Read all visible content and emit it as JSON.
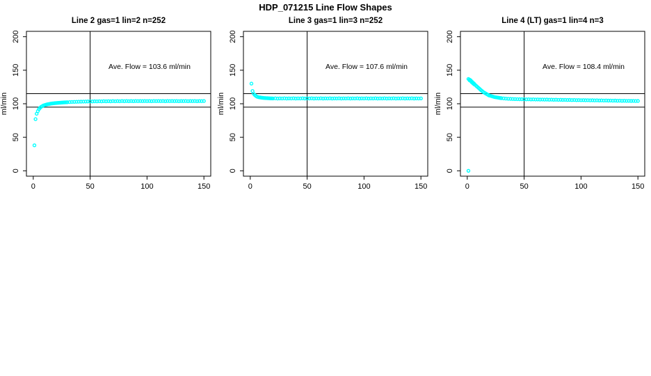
{
  "page": {
    "main_title": "HDP_071215  Line Flow Shapes"
  },
  "colors": {
    "points": "#00ffff",
    "axis": "#000000",
    "text": "#000000",
    "background": "#ffffff"
  },
  "chart_data": [
    {
      "type": "scatter",
      "title": "Line 2 gas=1 lin=2 n=252",
      "annotation": "Ave. Flow =  103.6  ml/min",
      "ave_flow": 103.6,
      "n": 252,
      "xlabel": "",
      "ylabel": "ml/min",
      "xticks": [
        0,
        50,
        100,
        150
      ],
      "yticks": [
        0,
        50,
        100,
        150,
        200
      ],
      "xlim": [
        -6,
        156
      ],
      "ylim": [
        -8,
        208
      ],
      "hlines": [
        95,
        115
      ],
      "vlines": [
        50
      ],
      "points": [
        [
          1,
          38
        ],
        [
          2,
          77
        ],
        [
          3,
          85
        ],
        [
          4,
          89
        ],
        [
          5,
          92
        ],
        [
          6,
          94
        ],
        [
          7,
          95.5
        ],
        [
          8,
          96.5
        ],
        [
          9,
          97.5
        ],
        [
          10,
          98
        ],
        [
          11,
          98.5
        ],
        [
          12,
          99
        ],
        [
          13,
          99.4
        ],
        [
          14,
          99.7
        ],
        [
          15,
          100
        ],
        [
          16,
          100.3
        ],
        [
          17,
          100.5
        ],
        [
          18,
          100.7
        ],
        [
          19,
          100.9
        ],
        [
          20,
          101
        ],
        [
          21,
          101.2
        ],
        [
          22,
          101.3
        ],
        [
          23,
          101.5
        ],
        [
          24,
          101.6
        ],
        [
          25,
          101.8
        ],
        [
          26,
          101.9
        ],
        [
          27,
          102
        ],
        [
          28,
          102.1
        ],
        [
          29,
          102.2
        ],
        [
          30,
          102.3
        ],
        [
          32,
          102.5
        ],
        [
          34,
          102.7
        ],
        [
          36,
          102.8
        ],
        [
          38,
          102.9
        ],
        [
          40,
          103
        ],
        [
          42,
          103.1
        ],
        [
          44,
          103.2
        ],
        [
          46,
          103.3
        ],
        [
          48,
          103.4
        ],
        [
          50,
          103.5
        ],
        [
          52,
          103.4
        ],
        [
          54,
          103.6
        ],
        [
          56,
          103.5
        ],
        [
          58,
          103.7
        ],
        [
          60,
          103.5
        ],
        [
          62,
          103.8
        ],
        [
          64,
          103.6
        ],
        [
          66,
          103.8
        ],
        [
          68,
          103.6
        ],
        [
          70,
          103.9
        ],
        [
          72,
          103.7
        ],
        [
          74,
          103.9
        ],
        [
          76,
          103.7
        ],
        [
          78,
          104
        ],
        [
          80,
          103.8
        ],
        [
          82,
          104
        ],
        [
          84,
          103.8
        ],
        [
          86,
          104
        ],
        [
          88,
          103.8
        ],
        [
          90,
          104
        ],
        [
          92,
          103.9
        ],
        [
          94,
          104.1
        ],
        [
          96,
          103.9
        ],
        [
          98,
          104.1
        ],
        [
          100,
          103.9
        ],
        [
          102,
          104
        ],
        [
          104,
          103.8
        ],
        [
          106,
          104
        ],
        [
          108,
          103.9
        ],
        [
          110,
          104.1
        ],
        [
          112,
          103.9
        ],
        [
          114,
          104
        ],
        [
          116,
          103.8
        ],
        [
          118,
          104
        ],
        [
          120,
          103.9
        ],
        [
          122,
          104.1
        ],
        [
          124,
          103.9
        ],
        [
          126,
          104
        ],
        [
          128,
          103.8
        ],
        [
          130,
          104
        ],
        [
          132,
          103.9
        ],
        [
          134,
          104
        ],
        [
          136,
          103.8
        ],
        [
          138,
          104
        ],
        [
          140,
          103.9
        ],
        [
          142,
          104
        ],
        [
          144,
          103.8
        ],
        [
          146,
          104
        ],
        [
          148,
          103.9
        ],
        [
          150,
          104
        ]
      ]
    },
    {
      "type": "scatter",
      "title": "Line 3 gas=1 lin=3 n=252",
      "annotation": "Ave. Flow =  107.6  ml/min",
      "ave_flow": 107.6,
      "n": 252,
      "xlabel": "",
      "ylabel": "ml/min",
      "xticks": [
        0,
        50,
        100,
        150
      ],
      "yticks": [
        0,
        50,
        100,
        150,
        200
      ],
      "xlim": [
        -6,
        156
      ],
      "ylim": [
        -8,
        208
      ],
      "hlines": [
        95,
        115
      ],
      "vlines": [
        50
      ],
      "points": [
        [
          1,
          130
        ],
        [
          2,
          119
        ],
        [
          3,
          115
        ],
        [
          4,
          113
        ],
        [
          5,
          111.5
        ],
        [
          6,
          110.5
        ],
        [
          7,
          110
        ],
        [
          8,
          109.6
        ],
        [
          9,
          109.3
        ],
        [
          10,
          109
        ],
        [
          11,
          108.8
        ],
        [
          12,
          108.6
        ],
        [
          13,
          108.5
        ],
        [
          14,
          108.4
        ],
        [
          15,
          108.3
        ],
        [
          16,
          108.2
        ],
        [
          17,
          108.1
        ],
        [
          18,
          108
        ],
        [
          19,
          108
        ],
        [
          20,
          107.9
        ],
        [
          22,
          108.1
        ],
        [
          24,
          107.8
        ],
        [
          26,
          108
        ],
        [
          28,
          107.9
        ],
        [
          30,
          108.1
        ],
        [
          32,
          107.8
        ],
        [
          34,
          108
        ],
        [
          36,
          107.9
        ],
        [
          38,
          108.1
        ],
        [
          40,
          107.8
        ],
        [
          42,
          108
        ],
        [
          44,
          107.9
        ],
        [
          46,
          108.1
        ],
        [
          48,
          107.8
        ],
        [
          50,
          108
        ],
        [
          52,
          107.9
        ],
        [
          54,
          108.1
        ],
        [
          56,
          107.8
        ],
        [
          58,
          108
        ],
        [
          60,
          107.9
        ],
        [
          62,
          108.1
        ],
        [
          64,
          107.8
        ],
        [
          66,
          108
        ],
        [
          68,
          107.9
        ],
        [
          70,
          108.1
        ],
        [
          72,
          107.8
        ],
        [
          74,
          108
        ],
        [
          76,
          107.9
        ],
        [
          78,
          108.1
        ],
        [
          80,
          107.8
        ],
        [
          82,
          108
        ],
        [
          84,
          107.9
        ],
        [
          86,
          108.1
        ],
        [
          88,
          107.8
        ],
        [
          90,
          108
        ],
        [
          92,
          107.9
        ],
        [
          94,
          108.1
        ],
        [
          96,
          107.8
        ],
        [
          98,
          108
        ],
        [
          100,
          107.9
        ],
        [
          102,
          108.1
        ],
        [
          104,
          107.8
        ],
        [
          106,
          108
        ],
        [
          108,
          107.9
        ],
        [
          110,
          108.1
        ],
        [
          112,
          107.8
        ],
        [
          114,
          108
        ],
        [
          116,
          107.9
        ],
        [
          118,
          108.1
        ],
        [
          120,
          107.8
        ],
        [
          122,
          108
        ],
        [
          124,
          107.9
        ],
        [
          126,
          108.1
        ],
        [
          128,
          107.8
        ],
        [
          130,
          108
        ],
        [
          132,
          107.9
        ],
        [
          134,
          108.1
        ],
        [
          136,
          107.8
        ],
        [
          138,
          108
        ],
        [
          140,
          107.9
        ],
        [
          142,
          108.1
        ],
        [
          144,
          107.8
        ],
        [
          146,
          108
        ],
        [
          148,
          107.9
        ],
        [
          150,
          108
        ]
      ]
    },
    {
      "type": "scatter",
      "title": "Line 4 (LT) gas=1 lin=4 n=3",
      "annotation": "Ave. Flow =  108.4  ml/min",
      "ave_flow": 108.4,
      "n": 3,
      "xlabel": "",
      "ylabel": "ml/min",
      "xticks": [
        0,
        50,
        100,
        150
      ],
      "yticks": [
        0,
        50,
        100,
        150,
        200
      ],
      "xlim": [
        -6,
        156
      ],
      "ylim": [
        -8,
        208
      ],
      "hlines": [
        95,
        115
      ],
      "vlines": [
        50
      ],
      "points": [
        [
          1,
          0
        ],
        [
          1,
          137
        ],
        [
          2,
          136
        ],
        [
          2,
          135
        ],
        [
          3,
          135
        ],
        [
          3,
          134
        ],
        [
          4,
          133
        ],
        [
          4,
          132
        ],
        [
          5,
          131.5
        ],
        [
          5,
          130.5
        ],
        [
          6,
          130
        ],
        [
          6,
          129
        ],
        [
          7,
          128
        ],
        [
          8,
          126.5
        ],
        [
          9,
          125
        ],
        [
          10,
          123.5
        ],
        [
          11,
          122
        ],
        [
          12,
          120.5
        ],
        [
          13,
          119
        ],
        [
          14,
          117.5
        ],
        [
          15,
          116.5
        ],
        [
          16,
          115.5
        ],
        [
          17,
          114.5
        ],
        [
          18,
          113.5
        ],
        [
          19,
          112.5
        ],
        [
          20,
          112
        ],
        [
          21,
          111.5
        ],
        [
          22,
          111
        ],
        [
          23,
          110.5
        ],
        [
          24,
          110
        ],
        [
          25,
          109.7
        ],
        [
          26,
          109.4
        ],
        [
          27,
          109.1
        ],
        [
          28,
          108.8
        ],
        [
          29,
          108.5
        ],
        [
          30,
          108.3
        ],
        [
          32,
          108
        ],
        [
          34,
          107.7
        ],
        [
          36,
          107.5
        ],
        [
          38,
          107.3
        ],
        [
          40,
          107.1
        ],
        [
          42,
          107
        ],
        [
          44,
          106.9
        ],
        [
          46,
          106.8
        ],
        [
          48,
          106.7
        ],
        [
          50,
          106.6
        ],
        [
          52,
          106.5
        ],
        [
          54,
          106.6
        ],
        [
          56,
          106.4
        ],
        [
          58,
          106.5
        ],
        [
          60,
          106.3
        ],
        [
          62,
          106.4
        ],
        [
          64,
          106.2
        ],
        [
          66,
          106.3
        ],
        [
          68,
          106.1
        ],
        [
          70,
          106.2
        ],
        [
          72,
          106
        ],
        [
          74,
          106.1
        ],
        [
          76,
          105.9
        ],
        [
          78,
          106
        ],
        [
          80,
          105.8
        ],
        [
          82,
          105.9
        ],
        [
          84,
          105.7
        ],
        [
          86,
          105.8
        ],
        [
          88,
          105.6
        ],
        [
          90,
          105.7
        ],
        [
          92,
          105.5
        ],
        [
          94,
          105.6
        ],
        [
          96,
          105.4
        ],
        [
          98,
          105.5
        ],
        [
          100,
          105.3
        ],
        [
          102,
          105.4
        ],
        [
          104,
          105.2
        ],
        [
          106,
          105.3
        ],
        [
          108,
          105.1
        ],
        [
          110,
          105.2
        ],
        [
          112,
          105
        ],
        [
          114,
          105.1
        ],
        [
          116,
          104.9
        ],
        [
          118,
          105
        ],
        [
          120,
          104.8
        ],
        [
          122,
          104.9
        ],
        [
          124,
          104.7
        ],
        [
          126,
          104.8
        ],
        [
          128,
          104.6
        ],
        [
          130,
          104.7
        ],
        [
          132,
          104.5
        ],
        [
          134,
          104.6
        ],
        [
          136,
          104.4
        ],
        [
          138,
          104.5
        ],
        [
          140,
          104.3
        ],
        [
          142,
          104.4
        ],
        [
          144,
          104.2
        ],
        [
          146,
          104.3
        ],
        [
          148,
          104.1
        ],
        [
          150,
          104.2
        ]
      ]
    }
  ]
}
